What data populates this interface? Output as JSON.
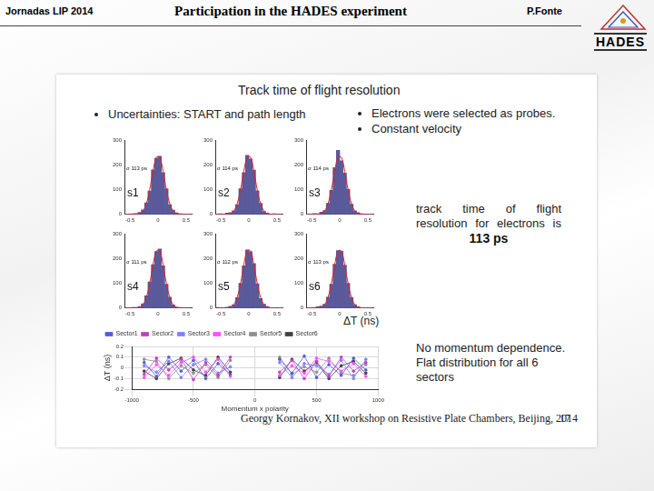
{
  "header": {
    "left": "Jornadas LIP 2014",
    "title": "Participation in the HADES experiment",
    "author": "P.Fonte",
    "logo": "HADES"
  },
  "slide": {
    "title": "Track time of flight resolution",
    "bullets_left": [
      "Uncertainties: START and path length"
    ],
    "bullets_right": [
      "Electrons were selected as probes.",
      "Constant velocity"
    ],
    "result_text": "track time of flight resolution for electrons is",
    "result_value": "113 ps",
    "histogram_axis_label": "ΔT (ns)",
    "conclusion": "No momentum dependence. Flat distribution for all 6 sectors",
    "footer": "Georgy Kornakov, XII workshop on Resistive Plate Chambers, Beijing, 2014",
    "page": "17"
  },
  "chart_data": [
    {
      "type": "histogram",
      "label": "s1",
      "annotation": "σ 113 ps",
      "bins": [
        -0.6,
        -0.54,
        -0.48,
        -0.42,
        -0.36,
        -0.3,
        -0.24,
        -0.18,
        -0.12,
        -0.06,
        0,
        0.06,
        0.12,
        0.18,
        0.24,
        0.3,
        0.36,
        0.42,
        0.48,
        0.54,
        0.6
      ],
      "counts": [
        2,
        1,
        3,
        4,
        8,
        18,
        47,
        95,
        181,
        228,
        236,
        170,
        104,
        40,
        17,
        6,
        3,
        2,
        1,
        2
      ],
      "fit": {
        "values": [
          0,
          0,
          0,
          1,
          3,
          14,
          43,
          100,
          175,
          232,
          232,
          175,
          100,
          43,
          14,
          3,
          1,
          0,
          0,
          0
        ],
        "color": "#e02020"
      },
      "color": "#5a5a9a",
      "xlim": [
        -0.6,
        0.6
      ],
      "xticks": [
        -0.5,
        0,
        0.5
      ],
      "ylim": [
        0,
        300
      ],
      "yticks": [
        0,
        100,
        200,
        300
      ],
      "grid": false
    },
    {
      "type": "histogram",
      "label": "s2",
      "annotation": "σ 114 ps",
      "bins": [
        -0.6,
        -0.54,
        -0.48,
        -0.42,
        -0.36,
        -0.3,
        -0.24,
        -0.18,
        -0.12,
        -0.06,
        0,
        0.06,
        0.12,
        0.18,
        0.24,
        0.3,
        0.36,
        0.42,
        0.48,
        0.54,
        0.6
      ],
      "counts": [
        1,
        3,
        2,
        5,
        7,
        15,
        40,
        104,
        170,
        240,
        225,
        180,
        96,
        45,
        12,
        5,
        2,
        3,
        1,
        1
      ],
      "fit": {
        "values": [
          0,
          0,
          0,
          1,
          3,
          14,
          43,
          100,
          175,
          232,
          232,
          175,
          100,
          43,
          14,
          3,
          1,
          0,
          0,
          0
        ],
        "color": "#e02020"
      },
      "color": "#5a5a9a",
      "xlim": [
        -0.6,
        0.6
      ],
      "xticks": [
        -0.5,
        0,
        0.5
      ],
      "ylim": [
        0,
        300
      ],
      "yticks": [
        0,
        100,
        200,
        300
      ],
      "grid": false
    },
    {
      "type": "histogram",
      "label": "s3",
      "annotation": "σ 114 ps",
      "bins": [
        -0.6,
        -0.54,
        -0.48,
        -0.42,
        -0.36,
        -0.3,
        -0.24,
        -0.18,
        -0.12,
        -0.06,
        0,
        0.06,
        0.12,
        0.18,
        0.24,
        0.3,
        0.36,
        0.42,
        0.48,
        0.54,
        0.6
      ],
      "counts": [
        2,
        2,
        4,
        3,
        9,
        16,
        45,
        98,
        190,
        260,
        218,
        168,
        102,
        41,
        15,
        7,
        3,
        1,
        2,
        1
      ],
      "fit": {
        "values": [
          0,
          0,
          0,
          1,
          3,
          14,
          43,
          100,
          175,
          232,
          232,
          175,
          100,
          43,
          14,
          3,
          1,
          0,
          0,
          0
        ],
        "color": "#e02020"
      },
      "color": "#5a5a9a",
      "xlim": [
        -0.6,
        0.6
      ],
      "xticks": [
        -0.5,
        0,
        0.5
      ],
      "ylim": [
        0,
        300
      ],
      "yticks": [
        0,
        100,
        200,
        300
      ],
      "grid": false
    },
    {
      "type": "histogram",
      "label": "s4",
      "annotation": "σ 111 ps",
      "bins": [
        -0.6,
        -0.54,
        -0.48,
        -0.42,
        -0.36,
        -0.3,
        -0.24,
        -0.18,
        -0.12,
        -0.06,
        0,
        0.06,
        0.12,
        0.18,
        0.24,
        0.3,
        0.36,
        0.42,
        0.48,
        0.54,
        0.6
      ],
      "counts": [
        1,
        2,
        3,
        3,
        6,
        17,
        50,
        106,
        176,
        230,
        240,
        172,
        97,
        44,
        13,
        4,
        3,
        2,
        1,
        0
      ],
      "fit": {
        "values": [
          0,
          0,
          0,
          1,
          3,
          14,
          43,
          100,
          175,
          232,
          232,
          175,
          100,
          43,
          14,
          3,
          1,
          0,
          0,
          0
        ],
        "color": "#e02020"
      },
      "color": "#5a5a9a",
      "xlim": [
        -0.6,
        0.6
      ],
      "xticks": [
        -0.5,
        0,
        0.5
      ],
      "ylim": [
        0,
        300
      ],
      "yticks": [
        0,
        100,
        200,
        300
      ],
      "grid": false
    },
    {
      "type": "histogram",
      "label": "s5",
      "annotation": "σ 112 ps",
      "bins": [
        -0.6,
        -0.54,
        -0.48,
        -0.42,
        -0.36,
        -0.3,
        -0.24,
        -0.18,
        -0.12,
        -0.06,
        0,
        0.06,
        0.12,
        0.18,
        0.24,
        0.3,
        0.36,
        0.42,
        0.48,
        0.54,
        0.6
      ],
      "counts": [
        3,
        1,
        2,
        4,
        7,
        14,
        42,
        101,
        172,
        236,
        229,
        181,
        99,
        39,
        16,
        6,
        2,
        2,
        1,
        2
      ],
      "fit": {
        "values": [
          0,
          0,
          0,
          1,
          3,
          14,
          43,
          100,
          175,
          232,
          232,
          175,
          100,
          43,
          14,
          3,
          1,
          0,
          0,
          0
        ],
        "color": "#e02020"
      },
      "color": "#5a5a9a",
      "xlim": [
        -0.6,
        0.6
      ],
      "xticks": [
        -0.5,
        0,
        0.5
      ],
      "ylim": [
        0,
        300
      ],
      "yticks": [
        0,
        100,
        200,
        300
      ],
      "grid": false
    },
    {
      "type": "histogram",
      "label": "s6",
      "annotation": "σ 113 ps",
      "bins": [
        -0.6,
        -0.54,
        -0.48,
        -0.42,
        -0.36,
        -0.3,
        -0.24,
        -0.18,
        -0.12,
        -0.06,
        0,
        0.06,
        0.12,
        0.18,
        0.24,
        0.3,
        0.36,
        0.42,
        0.48,
        0.54,
        0.6
      ],
      "counts": [
        2,
        2,
        3,
        5,
        8,
        16,
        44,
        97,
        178,
        234,
        231,
        174,
        101,
        43,
        14,
        5,
        2,
        1,
        2,
        1
      ],
      "fit": {
        "values": [
          0,
          0,
          0,
          1,
          3,
          14,
          43,
          100,
          175,
          232,
          232,
          175,
          100,
          43,
          14,
          3,
          1,
          0,
          0,
          0
        ],
        "color": "#e02020"
      },
      "color": "#5a5a9a",
      "xlim": [
        -0.6,
        0.6
      ],
      "xticks": [
        -0.5,
        0,
        0.5
      ],
      "ylim": [
        0,
        300
      ],
      "yticks": [
        0,
        100,
        200,
        300
      ],
      "grid": false
    },
    {
      "type": "line",
      "x_label": "Momentum x polarity",
      "y_label": "ΔT (ns)",
      "x": [
        -900,
        -800,
        -700,
        -600,
        -500,
        -400,
        -300,
        -200,
        0,
        200,
        300,
        400,
        500,
        600,
        700,
        800,
        900
      ],
      "series": [
        {
          "name": "Sector1",
          "color": "#5060d0",
          "values": [
            0.05,
            -0.08,
            0.1,
            -0.03,
            0.07,
            -0.1,
            0.04,
            -0.06,
            null,
            0.08,
            -0.05,
            0.11,
            -0.09,
            0.03,
            -0.07,
            0.09,
            -0.02
          ]
        },
        {
          "name": "Sector2",
          "color": "#c040c0",
          "values": [
            -0.06,
            0.09,
            -0.02,
            0.08,
            -0.11,
            0.05,
            -0.07,
            0.1,
            null,
            -0.04,
            0.07,
            -0.1,
            0.06,
            -0.08,
            0.1,
            -0.03,
            0.05
          ]
        },
        {
          "name": "Sector3",
          "color": "#8080ff",
          "values": [
            0.02,
            -0.04,
            0.06,
            -0.09,
            0.03,
            0.08,
            -0.05,
            0.01,
            null,
            0.05,
            -0.09,
            0.04,
            0.02,
            -0.06,
            0.07,
            -0.1,
            0.08
          ]
        },
        {
          "name": "Sector4",
          "color": "#ff50ff",
          "values": [
            -0.09,
            0.03,
            -0.07,
            0.05,
            0.1,
            -0.04,
            0.08,
            -0.08,
            null,
            -0.07,
            0.02,
            -0.05,
            0.09,
            0.06,
            -0.03,
            0.04,
            -0.08
          ]
        },
        {
          "name": "Sector5",
          "color": "#909090",
          "values": [
            0.08,
            0.06,
            -0.1,
            0.02,
            -0.05,
            0.03,
            -0.09,
            0.07,
            null,
            0.1,
            -0.06,
            0.01,
            -0.04,
            0.09,
            -0.05,
            -0.07,
            0.03
          ]
        },
        {
          "name": "Sector6",
          "color": "#404040",
          "values": [
            -0.03,
            -0.1,
            0.04,
            0.09,
            -0.02,
            -0.07,
            0.1,
            -0.04,
            null,
            -0.09,
            0.08,
            -0.03,
            0.05,
            -0.1,
            0.02,
            0.06,
            -0.05
          ]
        }
      ],
      "xlim": [
        -1000,
        1000
      ],
      "xticks": [
        -1000,
        -500,
        0,
        500,
        1000
      ],
      "ylim": [
        -0.2,
        0.2
      ],
      "yticks": [
        -0.2,
        -0.1,
        0,
        0.1,
        0.2
      ],
      "grid": true,
      "legend": "upper left",
      "marker": "circle",
      "line_style": "solid"
    }
  ]
}
